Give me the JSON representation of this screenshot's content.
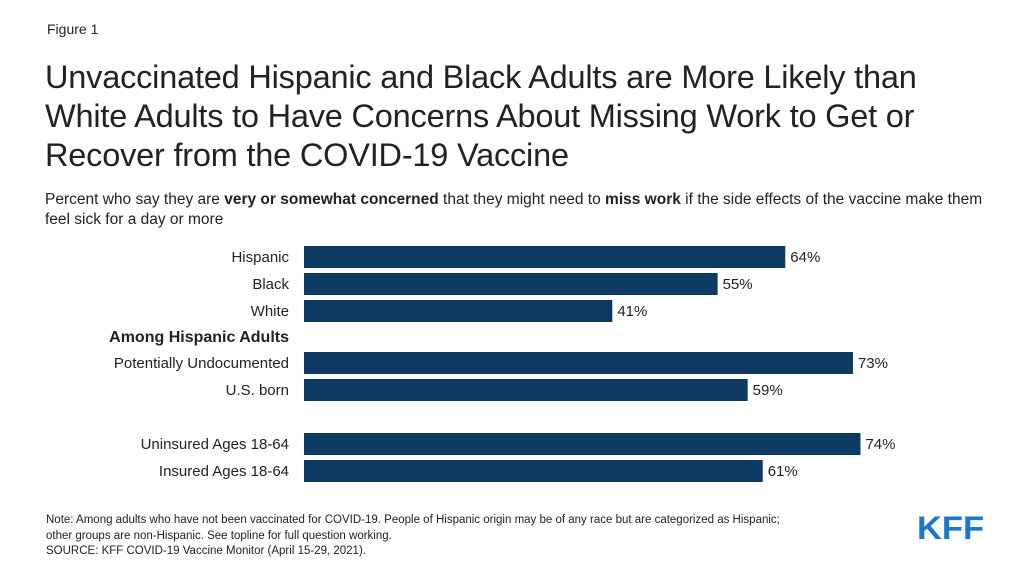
{
  "figure_label": "Figure 1",
  "title": "Unvaccinated Hispanic and Black Adults are More Likely than White Adults to Have Concerns About Missing Work to Get or Recover from the COVID-19 Vaccine",
  "subtitle": {
    "part1": "Percent who say they are ",
    "bold1": "very or somewhat concerned",
    "part2": " that they might need to ",
    "bold2": "miss work",
    "part3": " if the side effects of the vaccine make them feel sick for a day or more"
  },
  "chart_data": {
    "type": "bar",
    "orientation": "horizontal",
    "bar_color": "#0d3a63",
    "xlim": [
      0,
      100
    ],
    "grid": false,
    "categories": [
      "Hispanic",
      "Black",
      "White",
      "Potentially Undocumented",
      "U.S. born",
      "Uninsured Ages 18-64",
      "Insured Ages 18-64"
    ],
    "values": [
      64,
      55,
      41,
      73,
      59,
      74,
      61
    ],
    "data_labels": [
      "64%",
      "55%",
      "41%",
      "73%",
      "59%",
      "74%",
      "61%"
    ],
    "group_heading": "Among Hispanic Adults"
  },
  "note": {
    "line1": "Note: Among adults who have not been vaccinated for COVID-19. People of Hispanic origin may be of any race but are categorized as Hispanic;",
    "line2": "other groups are non-Hispanic. See topline for full question working.",
    "source": "SOURCE: KFF COVID-19 Vaccine Monitor (April 15-29, 2021)."
  },
  "logo": {
    "text": "KFF",
    "color": "#1a77c9"
  }
}
